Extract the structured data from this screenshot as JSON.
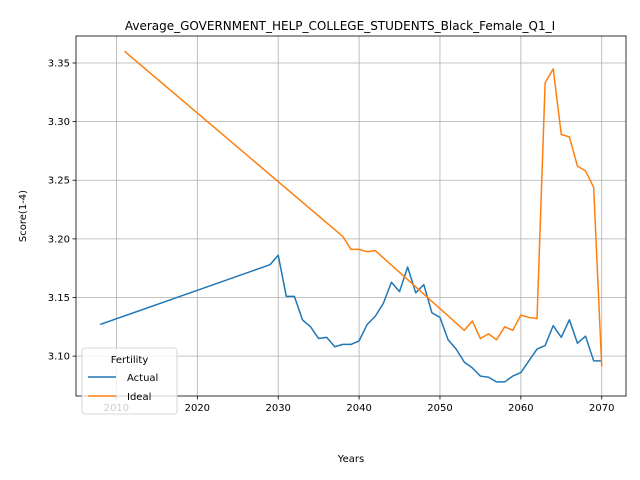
{
  "chart_data": {
    "type": "line",
    "title": "Average_GOVERNMENT_HELP_COLLEGE_STUDENTS_Black_Female_Q1_I",
    "xlabel": "Years",
    "ylabel": "Score(1-4)",
    "xlim": [
      2005,
      2073
    ],
    "ylim": [
      3.066,
      3.373
    ],
    "xticks": [
      2010,
      2020,
      2030,
      2040,
      2050,
      2060,
      2070
    ],
    "yticks": [
      3.1,
      3.15,
      3.2,
      3.25,
      3.3,
      3.35
    ],
    "grid": true,
    "legend": {
      "title": "Fertility",
      "placement": "lower-left"
    },
    "series": [
      {
        "name": "Actual",
        "color": "#1f77b4",
        "x": [
          2008,
          2029,
          2030,
          2031,
          2032,
          2033,
          2034,
          2035,
          2036,
          2037,
          2038,
          2039,
          2040,
          2041,
          2042,
          2043,
          2044,
          2045,
          2046,
          2047,
          2048,
          2049,
          2050,
          2051,
          2052,
          2053,
          2054,
          2055,
          2056,
          2057,
          2058,
          2059,
          2060,
          2061,
          2062,
          2063,
          2064,
          2065,
          2066,
          2067,
          2068,
          2069,
          2070
        ],
        "values": [
          3.127,
          3.178,
          3.186,
          3.151,
          3.151,
          3.131,
          3.125,
          3.115,
          3.116,
          3.108,
          3.11,
          3.11,
          3.113,
          3.127,
          3.134,
          3.145,
          3.163,
          3.155,
          3.176,
          3.154,
          3.161,
          3.137,
          3.133,
          3.114,
          3.106,
          3.095,
          3.09,
          3.083,
          3.082,
          3.078,
          3.078,
          3.083,
          3.086,
          3.096,
          3.106,
          3.109,
          3.126,
          3.116,
          3.131,
          3.111,
          3.117,
          3.096,
          3.096
        ]
      },
      {
        "name": "Ideal",
        "color": "#ff7f0e",
        "x": [
          2011,
          2038,
          2039,
          2040,
          2041,
          2042,
          2053,
          2054,
          2055,
          2056,
          2057,
          2058,
          2059,
          2060,
          2061,
          2062,
          2063,
          2064,
          2065,
          2066,
          2067,
          2068,
          2069,
          2070
        ],
        "values": [
          3.36,
          3.202,
          3.191,
          3.191,
          3.189,
          3.19,
          3.122,
          3.13,
          3.115,
          3.119,
          3.114,
          3.125,
          3.122,
          3.135,
          3.133,
          3.132,
          3.333,
          3.345,
          3.289,
          3.287,
          3.262,
          3.258,
          3.244,
          3.091
        ]
      }
    ]
  }
}
